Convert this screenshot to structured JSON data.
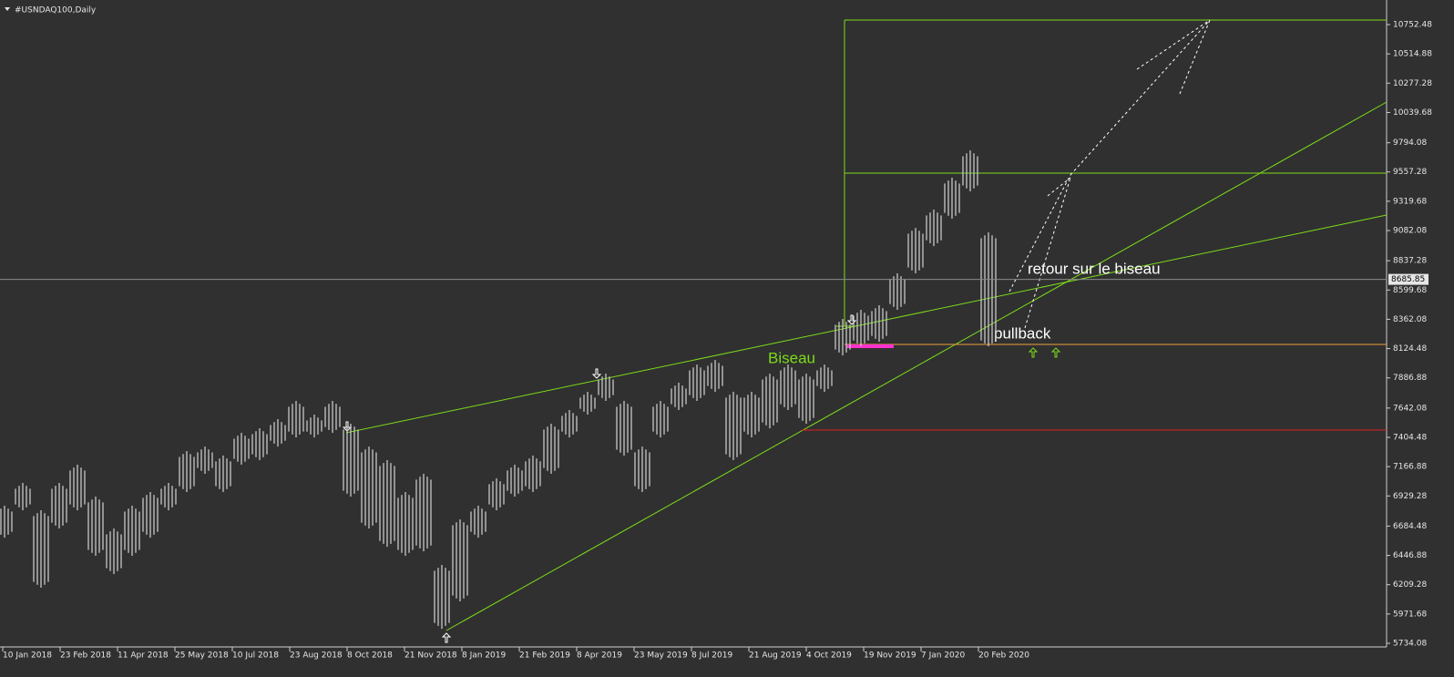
{
  "chart_data": {
    "type": "hilo",
    "title": "#USNDAQ100,Daily",
    "categories": [
      "10 Jan 2018",
      "23 Feb 2018",
      "11 Apr 2018",
      "25 May 2018",
      "10 Jul 2018",
      "23 Aug 2018",
      "8 Oct 2018",
      "21 Nov 2018",
      "8 Jan 2019",
      "21 Feb 2019",
      "8 Apr 2019",
      "23 May 2019",
      "8 Jul 2019",
      "21 Aug 2019",
      "4 Oct 2019",
      "19 Nov 2019",
      "7 Jan 2020",
      "20 Feb 2020"
    ],
    "high": [
      6850,
      7035,
      6813,
      7035,
      7183,
      6924,
      6665,
      6850,
      6961,
      7035,
      7293,
      7330,
      7257,
      7441,
      7478,
      7552,
      7700,
      7589,
      7700,
      7515,
      7330,
      7220,
      6961,
      7109,
      6370,
      6739,
      6850,
      7072,
      7183,
      7257,
      7515,
      7626,
      7774,
      7921,
      7700,
      7330,
      7700,
      7848,
      7995,
      8032,
      7774,
      7774,
      7921,
      7995,
      7921,
      7995,
      8365,
      8439,
      8476,
      8735,
      9104,
      9252,
      9511,
      9732,
      9067
    ],
    "low": [
      6591,
      6813,
      6185,
      6665,
      6813,
      6444,
      6296,
      6444,
      6591,
      6813,
      6961,
      7109,
      6961,
      7183,
      7220,
      7330,
      7404,
      7404,
      7441,
      6924,
      6665,
      6517,
      6444,
      6480,
      5852,
      6074,
      6591,
      6813,
      6924,
      6961,
      7109,
      7404,
      7589,
      7700,
      7257,
      6961,
      7404,
      7626,
      7700,
      7774,
      7220,
      7404,
      7478,
      7626,
      7515,
      7774,
      8069,
      8143,
      8180,
      8439,
      8735,
      8956,
      9178,
      9400,
      8143
    ],
    "color": "#c8c8c8",
    "current_price": 8685.85,
    "ylim": [
      5734.08,
      10752.48
    ],
    "yticks": [
      5734.08,
      5971.68,
      6209.28,
      6446.88,
      6684.48,
      6929.28,
      7166.88,
      7404.48,
      7642.08,
      7886.88,
      8124.48,
      8362.08,
      8599.68,
      8837.28,
      9082.08,
      9319.68,
      9557.28,
      9794.08,
      10039.68,
      10277.28,
      10514.88,
      10752.48
    ],
    "annotations": [
      "Biseau",
      "retour sur le biseau",
      "pullback"
    ]
  }
}
